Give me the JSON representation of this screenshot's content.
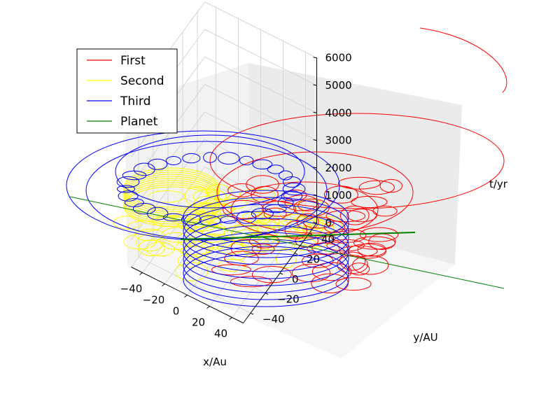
{
  "chart_data": {
    "type": "line",
    "projection": "3d",
    "title": "",
    "xlabel": "x/Au",
    "ylabel": "y/AU",
    "zlabel": "t/yr",
    "x_ticks": [
      "−40",
      "−20",
      "0",
      "20",
      "40"
    ],
    "y_ticks": [
      "−40",
      "−20",
      "0",
      "20",
      "40"
    ],
    "z_ticks": [
      "0",
      "1000",
      "2000",
      "3000",
      "4000",
      "5000",
      "6000"
    ],
    "xlim": [
      -50,
      50
    ],
    "ylim": [
      -50,
      50
    ],
    "zlim": [
      0,
      6000
    ],
    "grid": true,
    "legend_position": "top-left",
    "series": [
      {
        "name": "First",
        "color": "#ff0000"
      },
      {
        "name": "Second",
        "color": "#ffff00"
      },
      {
        "name": "Third",
        "color": "#0000ff"
      },
      {
        "name": "Planet",
        "color": "#008000"
      }
    ]
  }
}
